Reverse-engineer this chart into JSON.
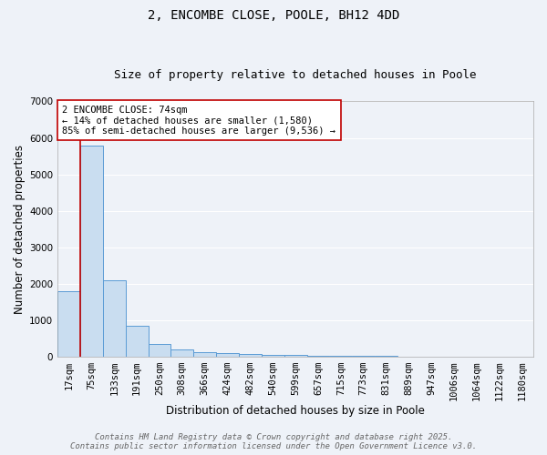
{
  "title": "2, ENCOMBE CLOSE, POOLE, BH12 4DD",
  "subtitle": "Size of property relative to detached houses in Poole",
  "xlabel": "Distribution of detached houses by size in Poole",
  "ylabel": "Number of detached properties",
  "bar_labels": [
    "17sqm",
    "75sqm",
    "133sqm",
    "191sqm",
    "250sqm",
    "308sqm",
    "366sqm",
    "424sqm",
    "482sqm",
    "540sqm",
    "599sqm",
    "657sqm",
    "715sqm",
    "773sqm",
    "831sqm",
    "889sqm",
    "947sqm",
    "1006sqm",
    "1064sqm",
    "1122sqm",
    "1180sqm"
  ],
  "bar_heights": [
    1800,
    5800,
    2100,
    830,
    340,
    200,
    120,
    90,
    70,
    55,
    40,
    30,
    20,
    10,
    8,
    5,
    4,
    3,
    2,
    2,
    1
  ],
  "bar_color": "#c9ddf0",
  "bar_edge_color": "#5b9bd5",
  "vline_x_index": 1,
  "vline_color": "#c00000",
  "annotation_text": "2 ENCOMBE CLOSE: 74sqm\n← 14% of detached houses are smaller (1,580)\n85% of semi-detached houses are larger (9,536) →",
  "annotation_box_color": "#ffffff",
  "annotation_box_edge_color": "#c00000",
  "ylim": [
    0,
    7000
  ],
  "yticks": [
    0,
    1000,
    2000,
    3000,
    4000,
    5000,
    6000,
    7000
  ],
  "background_color": "#eef2f8",
  "grid_color": "#ffffff",
  "footer_line1": "Contains HM Land Registry data © Crown copyright and database right 2025.",
  "footer_line2": "Contains public sector information licensed under the Open Government Licence v3.0.",
  "title_fontsize": 10,
  "subtitle_fontsize": 9,
  "axis_label_fontsize": 8.5,
  "tick_fontsize": 7.5,
  "annotation_fontsize": 7.5,
  "footer_fontsize": 6.5
}
